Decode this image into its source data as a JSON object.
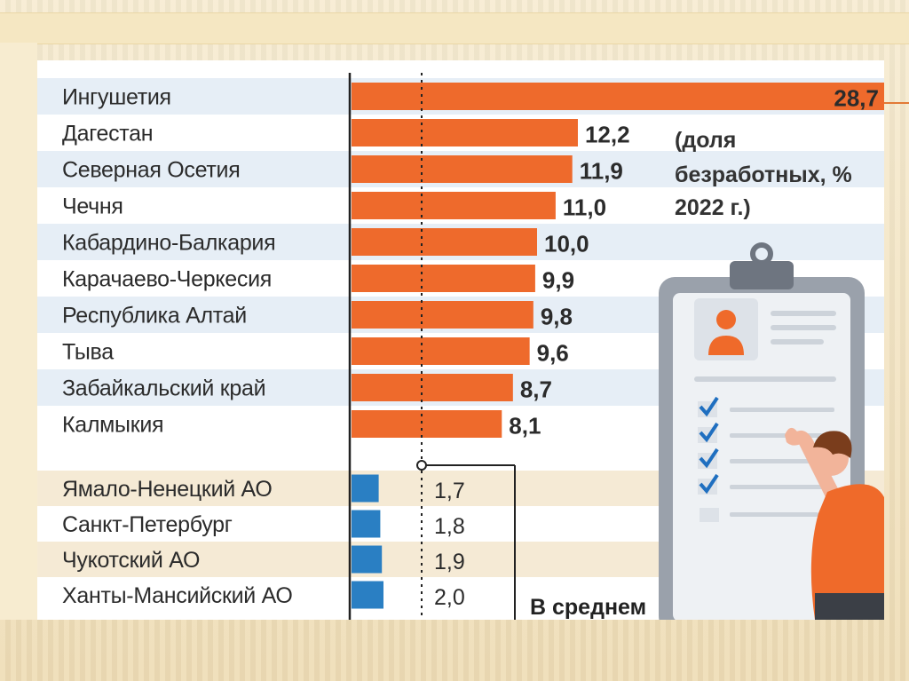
{
  "colors": {
    "high_bar": "#ee6a2c",
    "low_bar": "#2a7fc3",
    "row_shade_high": "#e6eef6",
    "row_shade_low": "#f5ead5",
    "text": "#2b2b2b"
  },
  "chart_data": {
    "type": "bar",
    "orientation": "horizontal",
    "value_format": "comma-decimal",
    "note_lines": [
      "(доля",
      "безработных, %",
      "2022 г.)"
    ],
    "average_label": "В среднем",
    "groups": [
      {
        "name": "",
        "color": "#ee6a2c",
        "categories": [
          "Ингушетия",
          "Дагестан",
          "Северная Осетия",
          "Чечня",
          "Кабардино-Балкария",
          "Карачаево-Черкесия",
          "Республика Алтай",
          "Тыва",
          "Забайкальский край",
          "Калмыкия"
        ],
        "values": [
          28.7,
          12.2,
          11.9,
          11.0,
          10.0,
          9.9,
          9.8,
          9.6,
          8.7,
          8.1
        ],
        "value_labels": [
          "28,7",
          "12,2",
          "11,9",
          "11,0",
          "10,0",
          "9,9",
          "9,8",
          "9,6",
          "8,7",
          "8,1"
        ]
      },
      {
        "name": "",
        "color": "#2a7fc3",
        "categories": [
          "Ямало-Ненецкий АО",
          "Санкт-Петербург",
          "Чукотский АО",
          "Ханты-Мансийский АО"
        ],
        "values": [
          1.7,
          1.8,
          1.9,
          2.0
        ],
        "value_labels": [
          "1,7",
          "1,8",
          "1,9",
          "2,0"
        ]
      }
    ],
    "grid": false,
    "legend": "none"
  }
}
